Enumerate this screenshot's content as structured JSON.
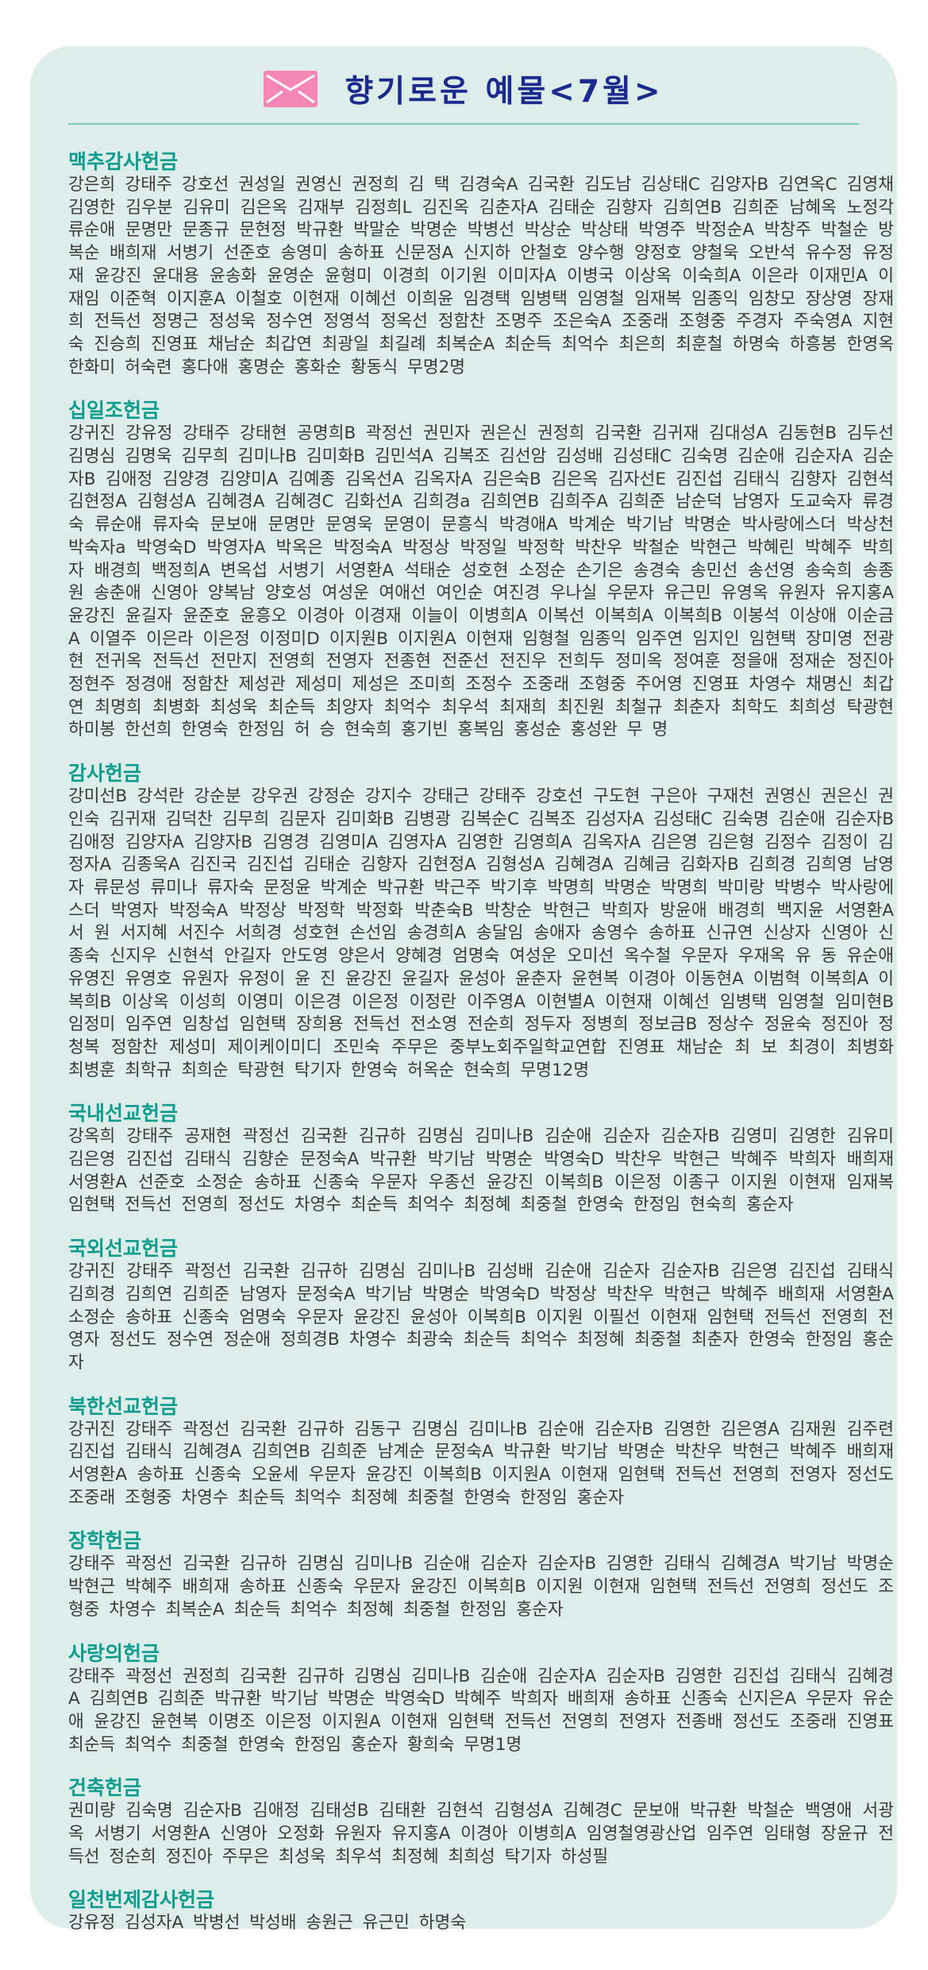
{
  "title": "향기로운 예물<7월>",
  "icon": "envelope-icon",
  "colors": {
    "panel": "#ddede9",
    "title": "#1b2a8f",
    "section_title": "#0e9c8f",
    "icon": "#f487b5"
  },
  "sections": [
    {
      "title": "맥추감사헌금",
      "names": "강은희 강태주 강호선 권성일 권영신 권정희 김 택 김경숙A 김국환 김도남 김상태C 김양자B 김연옥C 김영채 김영한 김우분 김유미 김은옥 김재부 김정희L 김진옥 김춘자A 김태순 김향자 김희연B 김희준 남혜옥 노정각 류순애 문명만 문종규 문현정 박규환 박말순 박명순 박병선 박상순 박상태 박영주 박정순A 박창주 박철순 방복순 배희재 서병기 선준호 송영미 송하표 신문정A 신지하 안철호 양수행 양정호 양철욱 오반석 유수정 유정재 윤강진 윤대용 윤송화 윤영순 윤형미 이경희 이기원 이미자A 이병국 이상옥 이숙희A 이은라 이재민A 이재임 이준혁 이지훈A 이철호 이현재 이혜선 이희윤 임경택 임병택 임영철 임재복 임종익 임창모 장상영 장재희 전득선 정명근 정성욱 정수연 정영석 정옥선 정함찬 조명주 조은숙A 조중래 조형중 주경자 주숙영A 지현숙 진승희 진영표 채남순 최갑연 최광일 최길례 최복순A 최순득 최억수 최은희 최훈철 하명숙 하흥봉 한영옥 한화미 허숙련 홍다애 홍명순 홍화순 황동식 무명2명"
    },
    {
      "title": "십일조헌금",
      "names": "강귀진 강유정 강태주 강태현 공명희B 곽정선 권민자 권은신 권정희 김국환 김귀재 김대성A 김동현B 김두선 김명심 김명욱 김무희 김미나B 김미화B 김민석A 김복조 김선암 김성배 김성태C 김숙명 김순애 김순자A 김순자B 김애정 김양경 김양미A 김예종 김옥선A 김옥자A 김은숙B 김은옥 김자선E 김진섭 김태식 김향자 김현석 김현정A 김형성A 김혜경A 김혜경C 김화선A 김희경a 김희연B 김희주A 김희준 남순덕 남영자 도교숙자 류경숙 류순애 류자숙 문보애 문명만 문영욱 문영이 문흥식 박경애A 박계순 박기남 박명순 박사랑에스더 박상천 박숙자a 박영숙D 박영자A 박옥은 박정숙A 박정상 박정일 박정학 박찬우 박철순 박현근 박혜린 박혜주 박희자 배경희 백정희A 변옥섭 서병기 서영환A 석태순 성호현 소정순 손기은 송경숙 송민선 송선영 송숙희 송종원 송춘애 신영아 양복남 양호성 여성운 여애선 여인순 여진경 우나실 우문자 유근민 유영옥 유원자 유지홍A 윤강진 윤길자 윤준호 윤흥오 이경아 이경재 이늘이 이병희A 이복선 이복희A 이복희B 이봉석 이상애 이순금A 이열주 이은라 이은정 이정미D 이지원B 이지원A 이현재 임형철 임종익 임주연 임지인 임현택 장미영 전광현 전귀옥 전득선 전만지 전영희 전영자 전종현 전준선 전진우 전희두 정미옥 정여훈 정을애 정재순 정진아 정현주 정경애 정함찬 제성관 제성미 제성은 조미희 조정수 조중래 조형중 주어영 진영표 차영수 채명신 최갑연 최명희 최병화 최성욱 최순득 최양자 최억수 최우석 최재희 최진원 최철규 최춘자 최학도 최희성 탁광현 하미봉 한선희 한영숙 한정임 허 승 현숙희 홍기빈 홍복임 홍성순 홍성완 무 명"
    },
    {
      "title": "감사헌금",
      "names": "강미선B 강석란 강순분 강우권 강정순 강지수 강태근 강태주 강호선 구도현 구은아 구재천 권영신 권은신 권인숙 김귀재 김덕찬 김무희 김문자 김미화B 김병광 김복순C 김복조 김성자A 김성태C 김숙명 김순애 김순자B 김애정 김양자A 김양자B 김영경 김영미A 김영자A 김영한 김영희A 김옥자A 김은영 김은형 김정수 김정이 김정자A 김종욱A 김진국 김진섭 김태순 김향자 김현정A 김형성A 김혜경A 김혜금 김화자B 김희경 김희영 남영자 류문성 류미나 류자숙 문정윤 박계순 박규환 박근주 박기후 박명희 박명순 박명희 박미랑 박병수 박사랑에스더 박영자 박정숙A 박정상 박정학 박정화 박춘숙B 박창순 박현근 박희자 방윤애 배경희 백지윤 서영환A 서 원 서지혜 서진수 서희경 성호현 손선임 송경희A 송달임 송애자 송영수 송하표 신규연 신상자 신영아 신종숙 신지우 신현석 안길자 안도영 양은서 양혜경 엄명숙 여성운 오미선 옥수철 우문자 우재옥 유 동 유순애 유영진 유영호 유원자 유정이 윤 진 윤강진 윤길자 윤성아 윤춘자 윤현복 이경아 이동현A 이범혁 이복희A 이복희B 이상옥 이성희 이영미 이은경 이은정 이정란 이주영A 이현별A 이현재 이혜선 임병택 임영철 임미현B 임정미 임주연 임창섭 임현택 장희용 전득선 전소영 전순희 정두자 정병희 정보금B 정상수 정윤숙 정진아 정청복 정함찬 제성미 제이케이미디 조민숙 주무은 중부노회주일학교연합 진영표 채남순 최 보 최경이 최병화 최병훈 최학규 최희순 탁광현 탁기자 한영숙 허옥순 현숙희 무명12명"
    },
    {
      "title": "국내선교헌금",
      "names": "강옥희 강태주 공재현 곽정선 김국환 김규하 김명심 김미나B 김순애 김순자 김순자B 김영미 김영한 김유미 김은영 김진섭 김태식 김향순 문정숙A 박규환 박기남 박명순 박영숙D 박찬우 박현근 박혜주 박희자 배희재 서영환A 선준호 소정순 송하표 신종숙 우문자 우종선 윤강진 이복희B 이은정 이종구 이지원 이현재 임재복 임현택 전득선 전영희 정선도 차영수 최순득 최억수 최정혜 최중철 한영숙 한정임 현숙희 홍순자"
    },
    {
      "title": "국외선교헌금",
      "names": "강귀진 강태주 곽정선 김국환 김규하 김명심 김미나B 김성배 김순애 김순자 김순자B 김은영 김진섭 김태식 김희경 김희연 김희준 남영자 문정숙A 박기남 박명순 박영숙D 박정상 박찬우 박현근 박혜주 배희재 서영환A 소정순 송하표 신종숙 엄명숙 우문자 윤강진 윤성아 이복희B 이지원 이필선 이현재 임현택 전득선 전영희 전영자 정선도 정수연 정순애 정희경B 차영수 최광숙 최순득 최억수 최정혜 최중철 최춘자 한영숙 한정임 홍순자"
    },
    {
      "title": "북한선교헌금",
      "names": "강귀진 강태주 곽정선 김국환 김규하 김동구 김명심 김미나B 김순애 김순자B 김영한 김은영A 김재원 김주련 김진섭 김태식 김혜경A 김희연B 김희준 남계순 문정숙A 박규환 박기남 박명순 박찬우 박현근 박혜주 배희재 서영환A 송하표 신종숙 오윤세 우문자 윤강진 이복희B 이지원A 이현재 임현택 전득선 전영희 전영자 정선도 조중래 조형중 차영수 최순득 최억수 최정혜 최중철 한영숙 한정임 홍순자"
    },
    {
      "title": "장학헌금",
      "names": "강태주 곽정선 김국환 김규하 김명심 김미나B 김순애 김순자 김순자B 김영한 김태식 김혜경A 박기남 박명순 박현근 박혜주 배희재 송하표 신종숙 우문자 윤강진 이복희B 이지원 이현재 임현택 전득선 전영희 정선도 조형중 차영수 최복순A 최순득 최억수 최정혜 최중철 한정임 홍순자"
    },
    {
      "title": "사랑의헌금",
      "names": "강태주 곽정선 권정희 김국환 김규하 김명심 김미나B 김순애 김순자A 김순자B 김영한 김진섭 김태식 김혜경A 김희연B 김희준 박규환 박기남 박명순 박영숙D 박혜주 박희자 배희재 송하표 신종숙 신지은A 우문자 유순애 윤강진 윤현복 이명조 이은정 이지원A 이현재 임현택 전득선 전영희 전영자 전종배 정선도 조중래 진영표 최순득 최억수 최중철 한영숙 한정임 홍순자 황희숙 무명1명"
    },
    {
      "title": "건축헌금",
      "names": "권미량 김숙명 김순자B 김애정 김태성B 김태환 김현석 김형성A 김혜경C 문보애 박규환 박철순 백영애 서광옥 서병기 서영환A 신영아 오정화 유원자 유지홍A 이경아 이병희A 임영철영광산업 임주연 임태형 장윤규 전득선 정순희 정진아 주무은 최성욱 최우석 최정혜 최희성 탁기자 하성필"
    },
    {
      "title": "일천번제감사헌금",
      "names": "강유정 김성자A 박병선 박성배 송원근 유근민 하명숙"
    }
  ]
}
